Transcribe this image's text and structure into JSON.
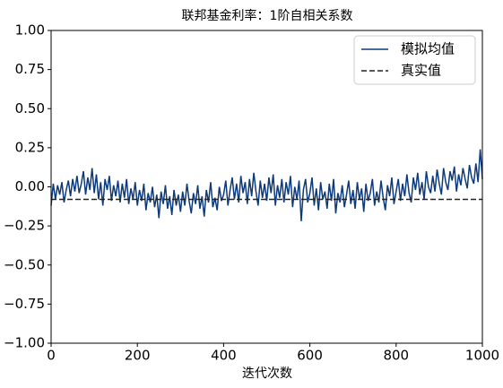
{
  "chart_data": {
    "type": "line",
    "title": "联邦基金利率：1阶自相关系数",
    "xlabel": "迭代次数",
    "x": [
      0,
      5,
      10,
      15,
      20,
      25,
      30,
      35,
      40,
      45,
      50,
      55,
      60,
      65,
      70,
      75,
      80,
      85,
      90,
      95,
      100,
      105,
      110,
      115,
      120,
      125,
      130,
      135,
      140,
      145,
      150,
      155,
      160,
      165,
      170,
      175,
      180,
      185,
      190,
      195,
      200,
      205,
      210,
      215,
      220,
      225,
      230,
      235,
      240,
      245,
      250,
      255,
      260,
      265,
      270,
      275,
      280,
      285,
      290,
      295,
      300,
      305,
      310,
      315,
      320,
      325,
      330,
      335,
      340,
      345,
      350,
      355,
      360,
      365,
      370,
      375,
      380,
      385,
      390,
      395,
      400,
      405,
      410,
      415,
      420,
      425,
      430,
      435,
      440,
      445,
      450,
      455,
      460,
      465,
      470,
      475,
      480,
      485,
      490,
      495,
      500,
      505,
      510,
      515,
      520,
      525,
      530,
      535,
      540,
      545,
      550,
      555,
      560,
      565,
      570,
      575,
      580,
      585,
      590,
      595,
      600,
      605,
      610,
      615,
      620,
      625,
      630,
      635,
      640,
      645,
      650,
      655,
      660,
      665,
      670,
      675,
      680,
      685,
      690,
      695,
      700,
      705,
      710,
      715,
      720,
      725,
      730,
      735,
      740,
      745,
      750,
      755,
      760,
      765,
      770,
      775,
      780,
      785,
      790,
      795,
      800,
      805,
      810,
      815,
      820,
      825,
      830,
      835,
      840,
      845,
      850,
      855,
      860,
      865,
      870,
      875,
      880,
      885,
      890,
      895,
      900,
      905,
      910,
      915,
      920,
      925,
      930,
      935,
      940,
      945,
      950,
      955,
      960,
      965,
      970,
      975,
      980,
      985,
      990,
      995,
      1000
    ],
    "series": [
      {
        "name": "模拟均值",
        "color": "#0d3a7a",
        "values": [
          -0.12,
          0.02,
          -0.08,
          0.01,
          -0.05,
          0.03,
          -0.1,
          -0.02,
          0.04,
          -0.06,
          0.05,
          -0.03,
          0.07,
          -0.04,
          0.02,
          0.1,
          -0.05,
          0.06,
          -0.02,
          0.12,
          -0.04,
          0.08,
          -0.08,
          0.03,
          -0.12,
          0.05,
          -0.02,
          0.07,
          -0.09,
          0.01,
          -0.06,
          0.04,
          -0.1,
          0.02,
          -0.07,
          0.05,
          -0.11,
          -0.01,
          -0.08,
          0.03,
          -0.12,
          -0.02,
          -0.09,
          0.02,
          -0.15,
          -0.04,
          -0.1,
          0.0,
          -0.13,
          -0.05,
          -0.2,
          -0.03,
          -0.11,
          0.01,
          -0.14,
          -0.06,
          -0.18,
          -0.02,
          -0.12,
          -0.05,
          -0.16,
          -0.03,
          -0.12,
          0.02,
          -0.09,
          -0.17,
          -0.04,
          -0.11,
          0.01,
          -0.14,
          -0.06,
          -0.19,
          -0.02,
          -0.1,
          0.03,
          -0.13,
          -0.07,
          -0.15,
          0.0,
          -0.09,
          -0.05,
          0.04,
          -0.12,
          -0.02,
          0.06,
          -0.08,
          0.02,
          -0.1,
          0.07,
          -0.04,
          0.03,
          -0.11,
          0.05,
          -0.06,
          0.09,
          -0.03,
          -0.12,
          0.04,
          -0.07,
          0.02,
          -0.09,
          0.06,
          -0.04,
          0.08,
          -0.12,
          0.01,
          -0.07,
          0.05,
          -0.1,
          0.03,
          -0.05,
          0.07,
          -0.13,
          0.0,
          -0.08,
          0.04,
          -0.22,
          -0.02,
          0.05,
          -0.1,
          -0.04,
          0.06,
          -0.12,
          -0.01,
          -0.15,
          0.03,
          -0.08,
          -0.03,
          -0.14,
          0.02,
          -0.09,
          0.05,
          -0.17,
          -0.04,
          -0.1,
          0.01,
          -0.13,
          -0.05,
          0.04,
          -0.11,
          -0.02,
          -0.14,
          0.03,
          -0.08,
          -0.01,
          -0.16,
          0.02,
          -0.09,
          -0.04,
          0.05,
          -0.12,
          -0.03,
          -0.1,
          0.04,
          -0.07,
          -0.15,
          0.01,
          -0.06,
          0.06,
          -0.11,
          -0.03,
          0.05,
          -0.09,
          0.02,
          -0.06,
          0.08,
          -0.04,
          -0.1,
          0.06,
          -0.02,
          0.09,
          -0.05,
          0.03,
          -0.08,
          0.1,
          0.0,
          -0.04,
          0.07,
          -0.03,
          0.11,
          0.02,
          -0.05,
          0.12,
          0.03,
          -0.02,
          0.1,
          0.04,
          0.13,
          -0.03,
          0.08,
          0.01,
          0.12,
          0.05,
          -0.01,
          0.14,
          0.06,
          0.02,
          0.15,
          0.03,
          0.24,
          0.05
        ]
      }
    ],
    "reference": {
      "name": "真实值",
      "value": -0.08,
      "color": "#222222",
      "dashed": true
    },
    "xlim": [
      0,
      1000
    ],
    "xticks": [
      0,
      200,
      400,
      600,
      800,
      1000
    ],
    "ylim": [
      -1,
      1
    ],
    "yticks": [
      {
        "value": -1,
        "label": "−1.00"
      },
      {
        "value": -0.75,
        "label": "−0.75"
      },
      {
        "value": -0.5,
        "label": "−0.50"
      },
      {
        "value": -0.25,
        "label": "−0.25"
      },
      {
        "value": 0,
        "label": "0.00"
      },
      0.25,
      {
        "value": 0.5,
        "label": "0.50"
      },
      0.75,
      {
        "value": 1,
        "label": "1.00"
      }
    ],
    "legend": "upper right"
  }
}
